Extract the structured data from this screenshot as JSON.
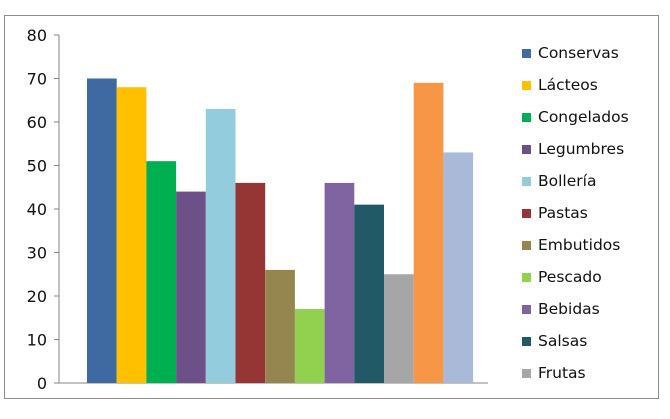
{
  "chart_data": {
    "type": "bar",
    "title": "",
    "xlabel": "",
    "ylabel": "",
    "ylim": [
      0,
      80
    ],
    "yticks": [
      0,
      10,
      20,
      30,
      40,
      50,
      60,
      70,
      80
    ],
    "grid": false,
    "legend_position": "right",
    "series": [
      {
        "name": "Conservas",
        "value": 70,
        "color": "#3f6aa1"
      },
      {
        "name": "Lácteos",
        "value": 68,
        "color": "#ffc000"
      },
      {
        "name": "Congelados",
        "value": 51,
        "color": "#00b050"
      },
      {
        "name": "Legumbres",
        "value": 44,
        "color": "#6c5087"
      },
      {
        "name": "Bollería",
        "value": 63,
        "color": "#93cddd"
      },
      {
        "name": "Pastas",
        "value": 46,
        "color": "#963634"
      },
      {
        "name": "Embutidos",
        "value": 26,
        "color": "#958650"
      },
      {
        "name": "Pescado",
        "value": 17,
        "color": "#92d050"
      },
      {
        "name": "Bebidas",
        "value": 46,
        "color": "#8064a2"
      },
      {
        "name": "Salsas",
        "value": 41,
        "color": "#215967"
      },
      {
        "name": "Frutas",
        "value": 25,
        "color": "#a6a6a6"
      },
      {
        "name": "",
        "value": 69,
        "color": "#f79646"
      },
      {
        "name": "",
        "value": 53,
        "color": "#a9bad9"
      }
    ]
  }
}
